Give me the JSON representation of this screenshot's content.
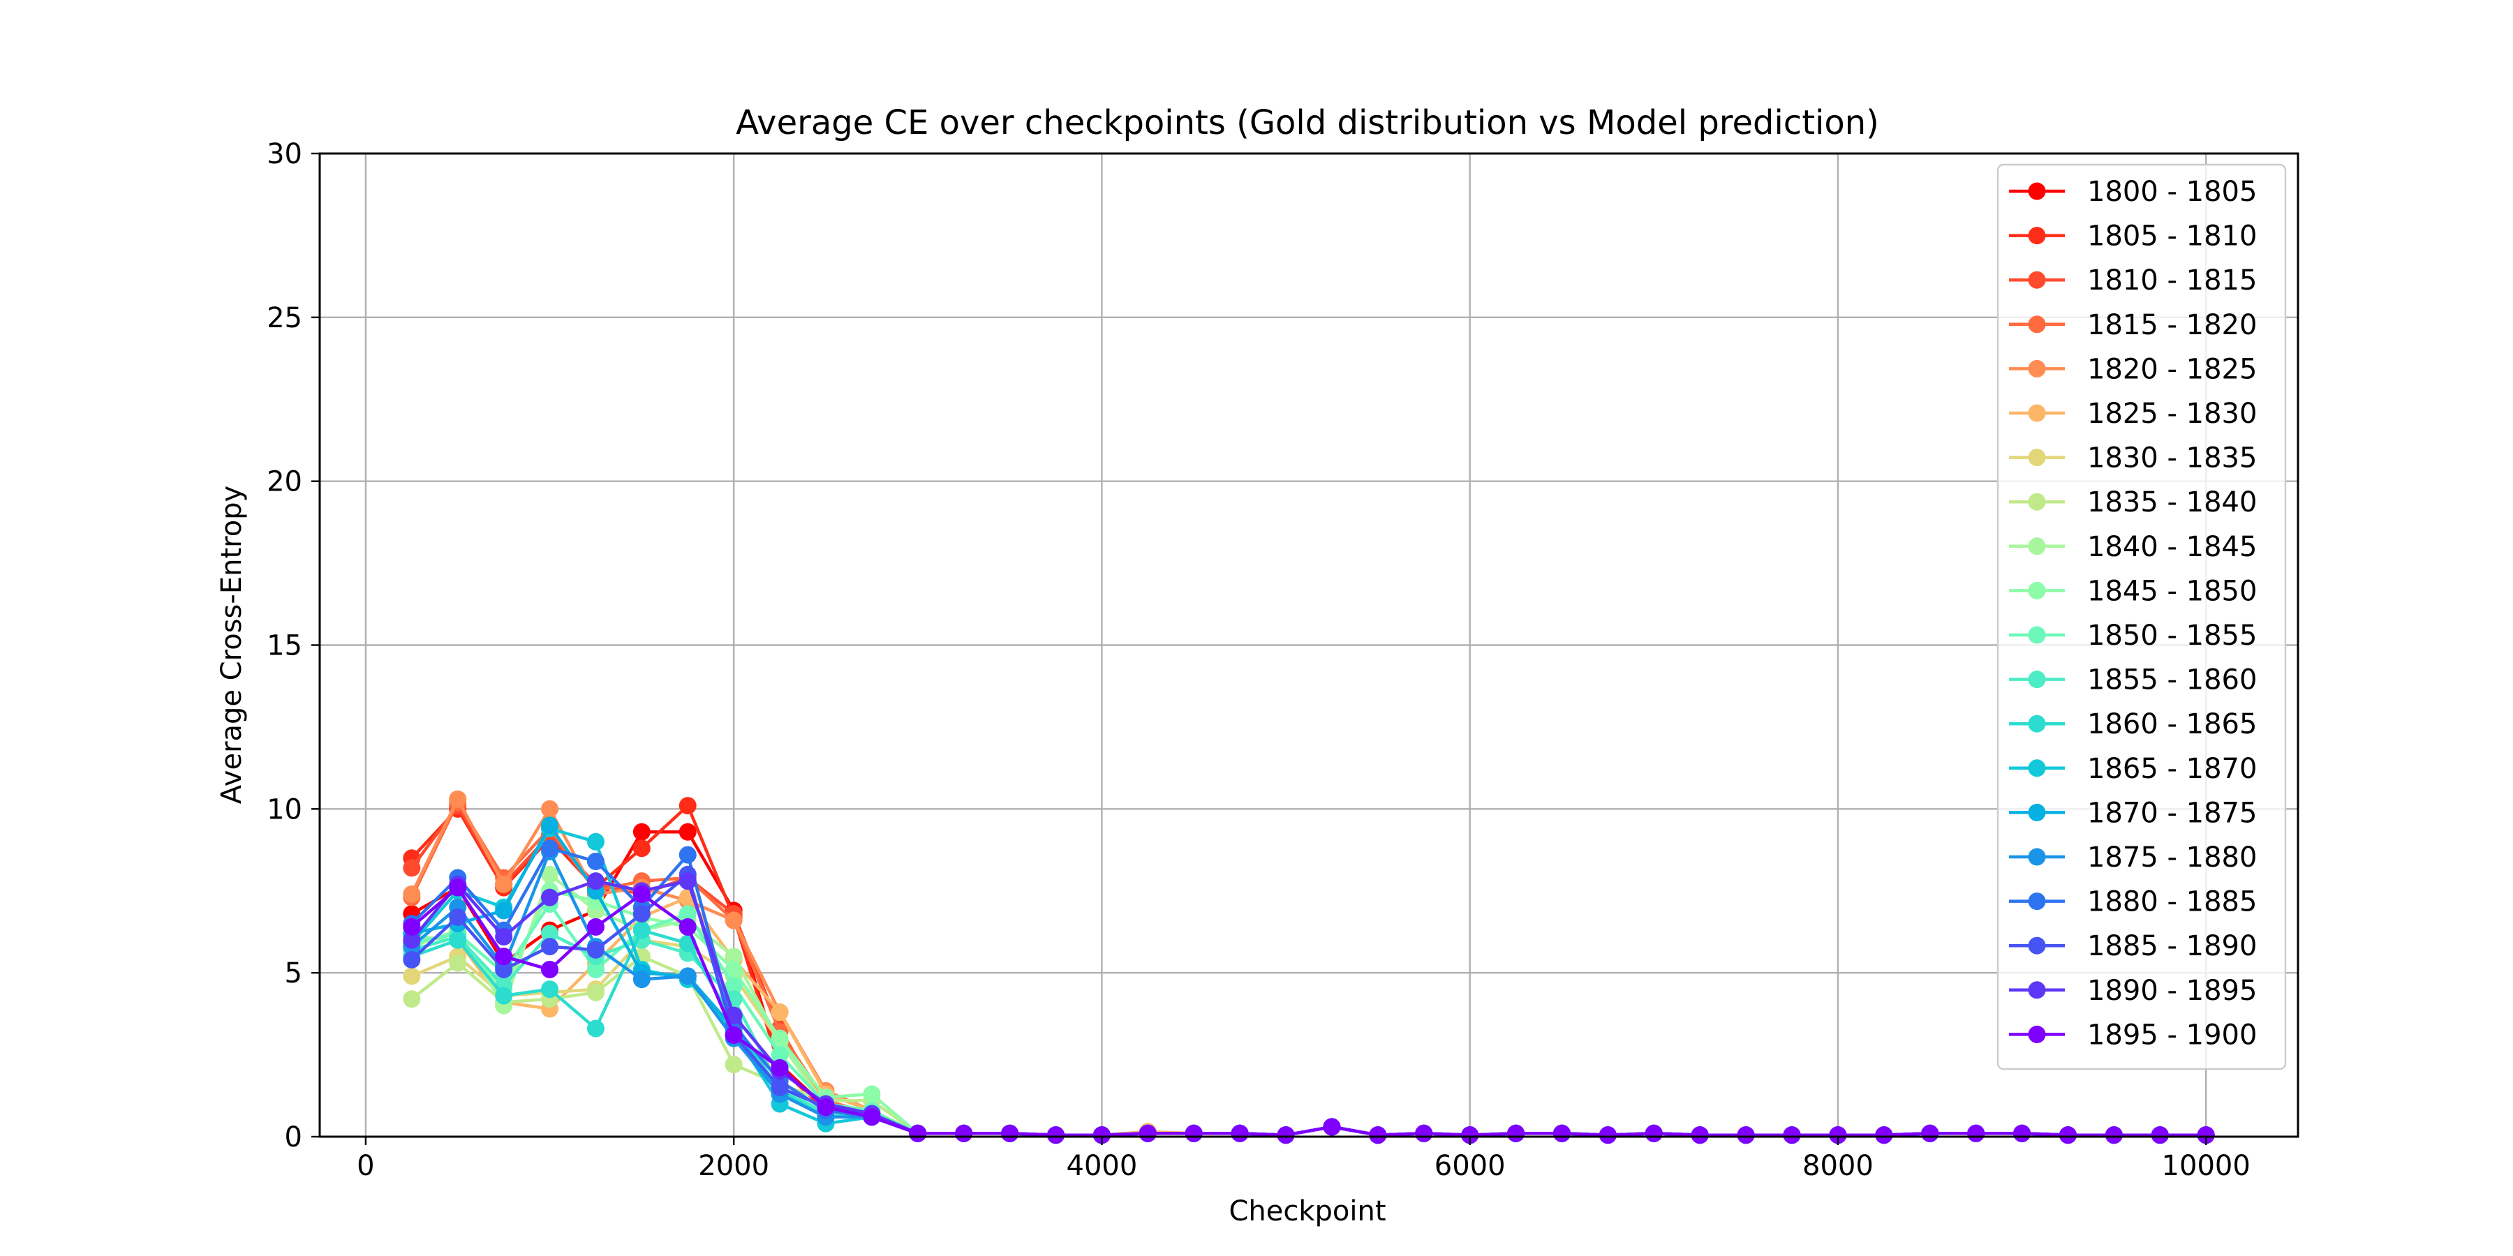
{
  "chart_data": {
    "type": "line",
    "title": "Average CE over checkpoints (Gold distribution vs Model prediction)",
    "xlabel": "Checkpoint",
    "ylabel": "Average Cross-Entropy",
    "xlim": [
      -250,
      10500
    ],
    "ylim": [
      0,
      30
    ],
    "xticks": [
      "0",
      "2000",
      "4000",
      "6000",
      "8000",
      "10000"
    ],
    "yticks": [
      "0",
      "5",
      "10",
      "15",
      "20",
      "25",
      "30"
    ],
    "grid": true,
    "legend_position": "top-right",
    "x": [
      250,
      500,
      750,
      1000,
      1250,
      1500,
      1750,
      2000,
      2250,
      2500,
      2750,
      3000,
      3250,
      3500,
      3750,
      4000,
      4250,
      4500,
      4750,
      5000,
      5250,
      5500,
      5750,
      6000,
      6250,
      6500,
      6750,
      7000,
      7250,
      7500,
      7750,
      8000,
      8250,
      8500,
      8750,
      9000,
      9250,
      9500,
      9750,
      10000
    ],
    "series": [
      {
        "name": "1800 - 1805",
        "color": "#ff0000",
        "values": [
          6.8,
          7.6,
          5.3,
          6.3,
          6.9,
          9.3,
          9.3,
          6.9,
          2.2,
          0.9,
          0.7,
          0.1,
          0.1,
          0.1,
          0.05,
          0.05,
          0.1,
          0.1,
          0.1,
          0.05,
          0.3,
          0.05,
          0.1,
          0.05,
          0.1,
          0.1,
          0.05,
          0.1,
          0.05,
          0.05,
          0.05,
          0.05,
          0.05,
          0.1,
          0.1,
          0.1,
          0.05,
          0.05,
          0.05,
          0.05
        ]
      },
      {
        "name": "1805 - 1810",
        "color": "#ff2d17",
        "values": [
          8.5,
          10.0,
          7.6,
          9.1,
          7.6,
          8.8,
          10.1,
          6.7,
          2.1,
          0.8,
          0.7,
          0.1,
          0.1,
          0.1,
          0.05,
          0.05,
          0.1,
          0.1,
          0.1,
          0.05,
          0.3,
          0.05,
          0.1,
          0.05,
          0.1,
          0.1,
          0.05,
          0.1,
          0.05,
          0.05,
          0.05,
          0.05,
          0.05,
          0.1,
          0.1,
          0.1,
          0.05,
          0.05,
          0.05,
          0.05
        ]
      },
      {
        "name": "1810 - 1815",
        "color": "#ff4a2e",
        "values": [
          8.2,
          10.1,
          7.7,
          9.2,
          7.7,
          7.4,
          7.9,
          6.8,
          3.3,
          0.9,
          0.7,
          0.1,
          0.1,
          0.1,
          0.05,
          0.05,
          0.1,
          0.1,
          0.1,
          0.05,
          0.3,
          0.05,
          0.1,
          0.05,
          0.1,
          0.1,
          0.05,
          0.1,
          0.05,
          0.05,
          0.05,
          0.05,
          0.05,
          0.1,
          0.1,
          0.1,
          0.05,
          0.05,
          0.05,
          0.05
        ]
      },
      {
        "name": "1815 - 1820",
        "color": "#ff6a3f",
        "values": [
          7.3,
          10.2,
          7.9,
          9.4,
          7.5,
          7.8,
          7.9,
          6.6,
          3.2,
          1.1,
          0.7,
          0.1,
          0.1,
          0.1,
          0.05,
          0.05,
          0.1,
          0.1,
          0.1,
          0.05,
          0.3,
          0.05,
          0.1,
          0.05,
          0.1,
          0.1,
          0.05,
          0.1,
          0.05,
          0.05,
          0.05,
          0.05,
          0.05,
          0.1,
          0.1,
          0.1,
          0.05,
          0.05,
          0.05,
          0.05
        ]
      },
      {
        "name": "1820 - 1825",
        "color": "#ff8c52",
        "values": [
          7.4,
          10.3,
          7.7,
          10.0,
          7.4,
          7.6,
          7.2,
          6.6,
          3.8,
          1.4,
          0.8,
          0.1,
          0.1,
          0.1,
          0.05,
          0.05,
          0.15,
          0.1,
          0.1,
          0.05,
          0.3,
          0.05,
          0.1,
          0.05,
          0.1,
          0.1,
          0.05,
          0.1,
          0.05,
          0.05,
          0.05,
          0.05,
          0.05,
          0.1,
          0.1,
          0.1,
          0.05,
          0.05,
          0.05,
          0.05
        ]
      },
      {
        "name": "1825 - 1830",
        "color": "#fdb665",
        "values": [
          6.1,
          6.0,
          4.1,
          3.9,
          5.3,
          6.7,
          7.3,
          5.4,
          3.8,
          1.3,
          0.8,
          0.1,
          0.1,
          0.1,
          0.05,
          0.05,
          0.15,
          0.1,
          0.1,
          0.05,
          0.3,
          0.05,
          0.1,
          0.05,
          0.1,
          0.1,
          0.05,
          0.1,
          0.05,
          0.05,
          0.05,
          0.05,
          0.05,
          0.1,
          0.1,
          0.1,
          0.05,
          0.05,
          0.05,
          0.05
        ]
      },
      {
        "name": "1830 - 1835",
        "color": "#e2d679",
        "values": [
          4.9,
          5.5,
          4.3,
          4.4,
          4.5,
          6.0,
          5.8,
          4.9,
          2.9,
          1.0,
          0.7,
          0.1,
          0.1,
          0.1,
          0.05,
          0.05,
          0.1,
          0.1,
          0.1,
          0.05,
          0.3,
          0.05,
          0.1,
          0.05,
          0.1,
          0.1,
          0.05,
          0.1,
          0.05,
          0.05,
          0.05,
          0.05,
          0.05,
          0.1,
          0.1,
          0.1,
          0.05,
          0.05,
          0.05,
          0.05
        ]
      },
      {
        "name": "1835 - 1840",
        "color": "#c0ea8a",
        "values": [
          4.2,
          5.3,
          4.1,
          4.2,
          4.4,
          5.5,
          4.9,
          2.2,
          1.6,
          1.1,
          1.1,
          0.1,
          0.1,
          0.1,
          0.05,
          0.05,
          0.1,
          0.1,
          0.1,
          0.05,
          0.3,
          0.05,
          0.1,
          0.05,
          0.1,
          0.1,
          0.05,
          0.1,
          0.05,
          0.05,
          0.05,
          0.05,
          0.05,
          0.1,
          0.1,
          0.1,
          0.05,
          0.05,
          0.05,
          0.05
        ]
      },
      {
        "name": "1840 - 1845",
        "color": "#a8f59d",
        "values": [
          5.8,
          6.3,
          4.0,
          8.0,
          6.9,
          6.3,
          6.6,
          5.5,
          2.9,
          0.9,
          0.8,
          0.1,
          0.1,
          0.1,
          0.05,
          0.05,
          0.1,
          0.1,
          0.1,
          0.05,
          0.3,
          0.05,
          0.1,
          0.05,
          0.1,
          0.1,
          0.05,
          0.1,
          0.05,
          0.05,
          0.05,
          0.05,
          0.05,
          0.1,
          0.1,
          0.1,
          0.05,
          0.05,
          0.05,
          0.05
        ]
      },
      {
        "name": "1845 - 1850",
        "color": "#8cfca9",
        "values": [
          6.1,
          6.0,
          4.5,
          7.5,
          7.2,
          6.7,
          6.4,
          5.1,
          3.0,
          1.2,
          1.3,
          0.1,
          0.1,
          0.1,
          0.05,
          0.05,
          0.1,
          0.1,
          0.1,
          0.05,
          0.3,
          0.05,
          0.1,
          0.05,
          0.1,
          0.1,
          0.05,
          0.1,
          0.05,
          0.05,
          0.05,
          0.05,
          0.05,
          0.1,
          0.1,
          0.1,
          0.05,
          0.05,
          0.05,
          0.05
        ]
      },
      {
        "name": "1850 - 1855",
        "color": "#6cf8b8",
        "values": [
          5.9,
          6.2,
          5.0,
          7.1,
          5.1,
          6.3,
          6.8,
          4.6,
          2.5,
          1.0,
          0.8,
          0.1,
          0.1,
          0.1,
          0.05,
          0.05,
          0.1,
          0.1,
          0.1,
          0.05,
          0.3,
          0.05,
          0.1,
          0.05,
          0.1,
          0.1,
          0.05,
          0.1,
          0.05,
          0.05,
          0.05,
          0.05,
          0.05,
          0.1,
          0.1,
          0.1,
          0.05,
          0.05,
          0.05,
          0.05
        ]
      },
      {
        "name": "1855 - 1860",
        "color": "#4cecc4",
        "values": [
          5.7,
          6.1,
          4.6,
          6.2,
          5.5,
          6.0,
          5.6,
          4.2,
          1.5,
          0.7,
          0.7,
          0.1,
          0.1,
          0.1,
          0.05,
          0.05,
          0.1,
          0.1,
          0.1,
          0.05,
          0.3,
          0.05,
          0.1,
          0.05,
          0.1,
          0.1,
          0.05,
          0.1,
          0.05,
          0.05,
          0.05,
          0.05,
          0.05,
          0.1,
          0.1,
          0.1,
          0.05,
          0.05,
          0.05,
          0.05
        ]
      },
      {
        "name": "1860 - 1865",
        "color": "#2cdcce",
        "values": [
          5.5,
          6.0,
          4.3,
          4.5,
          3.3,
          6.3,
          5.9,
          3.5,
          1.4,
          0.6,
          0.7,
          0.1,
          0.1,
          0.1,
          0.05,
          0.05,
          0.1,
          0.1,
          0.1,
          0.05,
          0.3,
          0.05,
          0.1,
          0.05,
          0.1,
          0.1,
          0.05,
          0.1,
          0.05,
          0.05,
          0.05,
          0.05,
          0.05,
          0.1,
          0.1,
          0.1,
          0.05,
          0.05,
          0.05,
          0.05
        ]
      },
      {
        "name": "1865 - 1870",
        "color": "#12c8d9",
        "values": [
          5.9,
          7.5,
          7.0,
          9.4,
          9.0,
          5.1,
          4.8,
          3.2,
          1.0,
          0.4,
          0.6,
          0.1,
          0.1,
          0.1,
          0.05,
          0.05,
          0.1,
          0.1,
          0.1,
          0.05,
          0.3,
          0.05,
          0.1,
          0.05,
          0.1,
          0.1,
          0.05,
          0.1,
          0.05,
          0.05,
          0.05,
          0.05,
          0.05,
          0.1,
          0.1,
          0.1,
          0.05,
          0.05,
          0.05,
          0.05
        ]
      },
      {
        "name": "1870 - 1875",
        "color": "#06b0e2",
        "values": [
          6.2,
          6.5,
          6.9,
          9.5,
          7.5,
          5.0,
          4.9,
          3.3,
          1.3,
          0.6,
          0.6,
          0.1,
          0.1,
          0.1,
          0.05,
          0.05,
          0.1,
          0.1,
          0.1,
          0.05,
          0.3,
          0.05,
          0.1,
          0.05,
          0.1,
          0.1,
          0.05,
          0.1,
          0.05,
          0.05,
          0.05,
          0.05,
          0.05,
          0.1,
          0.1,
          0.1,
          0.05,
          0.05,
          0.05,
          0.05
        ]
      },
      {
        "name": "1875 - 1880",
        "color": "#1a94e9",
        "values": [
          5.8,
          7.0,
          5.2,
          8.7,
          5.8,
          4.8,
          4.9,
          3.0,
          1.3,
          0.6,
          0.6,
          0.1,
          0.1,
          0.1,
          0.05,
          0.05,
          0.1,
          0.1,
          0.1,
          0.05,
          0.3,
          0.05,
          0.1,
          0.05,
          0.1,
          0.1,
          0.05,
          0.1,
          0.05,
          0.05,
          0.05,
          0.05,
          0.05,
          0.1,
          0.1,
          0.1,
          0.05,
          0.05,
          0.05,
          0.05
        ]
      },
      {
        "name": "1880 - 1885",
        "color": "#2e74f0",
        "values": [
          6.5,
          7.9,
          6.3,
          8.8,
          8.4,
          7.0,
          8.6,
          3.4,
          1.7,
          0.8,
          0.6,
          0.1,
          0.1,
          0.1,
          0.05,
          0.05,
          0.1,
          0.1,
          0.1,
          0.05,
          0.3,
          0.05,
          0.1,
          0.05,
          0.1,
          0.1,
          0.05,
          0.1,
          0.05,
          0.05,
          0.05,
          0.05,
          0.05,
          0.1,
          0.1,
          0.1,
          0.05,
          0.05,
          0.05,
          0.05
        ]
      },
      {
        "name": "1885 - 1890",
        "color": "#4654f5",
        "values": [
          5.4,
          6.7,
          5.1,
          5.8,
          5.7,
          6.8,
          8.0,
          3.1,
          1.5,
          0.9,
          0.7,
          0.1,
          0.1,
          0.1,
          0.05,
          0.05,
          0.1,
          0.1,
          0.1,
          0.05,
          0.3,
          0.05,
          0.1,
          0.05,
          0.1,
          0.1,
          0.05,
          0.1,
          0.05,
          0.05,
          0.05,
          0.05,
          0.05,
          0.1,
          0.1,
          0.1,
          0.05,
          0.05,
          0.05,
          0.05
        ]
      },
      {
        "name": "1890 - 1895",
        "color": "#5e36f8",
        "values": [
          6.0,
          7.7,
          6.1,
          7.3,
          7.8,
          7.5,
          7.8,
          3.7,
          2.0,
          1.0,
          0.7,
          0.1,
          0.1,
          0.1,
          0.05,
          0.05,
          0.1,
          0.1,
          0.1,
          0.05,
          0.3,
          0.05,
          0.1,
          0.05,
          0.1,
          0.1,
          0.05,
          0.1,
          0.05,
          0.05,
          0.05,
          0.05,
          0.05,
          0.1,
          0.1,
          0.1,
          0.05,
          0.05,
          0.05,
          0.05
        ]
      },
      {
        "name": "1895 - 1900",
        "color": "#8000ff",
        "values": [
          6.4,
          7.6,
          5.5,
          5.1,
          6.4,
          7.4,
          6.4,
          3.1,
          2.1,
          0.9,
          0.6,
          0.1,
          0.1,
          0.1,
          0.05,
          0.05,
          0.1,
          0.1,
          0.1,
          0.05,
          0.3,
          0.05,
          0.1,
          0.05,
          0.1,
          0.1,
          0.05,
          0.1,
          0.05,
          0.05,
          0.05,
          0.05,
          0.05,
          0.1,
          0.1,
          0.1,
          0.05,
          0.05,
          0.05,
          0.05
        ]
      }
    ]
  }
}
